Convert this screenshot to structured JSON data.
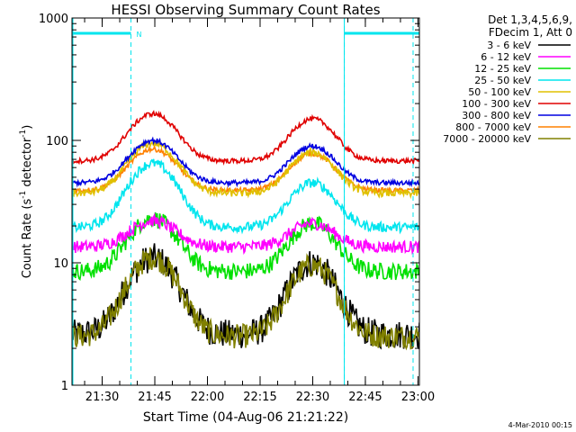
{
  "chart_data": {
    "type": "line",
    "title": "HESSI Observing Summary Count Rates",
    "xlabel": "Start Time (04-Aug-06 21:21:22)",
    "ylabel_main": "Count Rate (s",
    "ylabel_sup1": "-1",
    "ylabel_mid": " detector",
    "ylabel_sup2": "-1",
    "ylabel_end": ")",
    "y_scale": "log",
    "ylim": [
      1,
      1000
    ],
    "xlim_minutes": [
      0,
      99
    ],
    "x_tick_labels": [
      "21:30",
      "21:45",
      "22:00",
      "22:15",
      "22:30",
      "22:45",
      "23:00"
    ],
    "x_tick_minutes": [
      8.6,
      23.6,
      38.6,
      53.6,
      68.6,
      83.6,
      98.6
    ],
    "y_tick_labels": [
      "1",
      "10",
      "100",
      "1000"
    ],
    "y_tick_values": [
      1,
      10,
      100,
      1000
    ],
    "legend_header": [
      "Det 1,3,4,5,6,9,",
      "FDecim 1, Att 0"
    ],
    "legend_placement": "right",
    "night_flag": {
      "label": "N",
      "intervals_minutes": [
        [
          0,
          16.8
        ],
        [
          77.6,
          99
        ]
      ],
      "level": 750,
      "color": "#00e5ee"
    },
    "saa_lines_minutes": [
      16.8,
      77.6,
      97.2
    ],
    "series": [
      {
        "name": "3 - 6 keV",
        "color": "#000000",
        "base": 2.6,
        "peak1": 11,
        "peak2": 10,
        "noise": 0.12
      },
      {
        "name": "6 - 12 keV",
        "color": "#ff00ff",
        "base": 13.5,
        "peak1": 22,
        "peak2": 21,
        "noise": 0.05
      },
      {
        "name": "12 - 25 keV",
        "color": "#00e000",
        "base": 8.5,
        "peak1": 23,
        "peak2": 21,
        "noise": 0.07
      },
      {
        "name": "25 - 50 keV",
        "color": "#00e5ee",
        "base": 19.5,
        "peak1": 65,
        "peak2": 45,
        "noise": 0.04
      },
      {
        "name": "50 - 100 keV",
        "color": "#e0c000",
        "base": 37,
        "peak1": 95,
        "peak2": 80,
        "noise": 0.03
      },
      {
        "name": "100 - 300 keV",
        "color": "#e00000",
        "base": 68,
        "peak1": 165,
        "peak2": 150,
        "noise": 0.02
      },
      {
        "name": "300 - 800 keV",
        "color": "#0000e0",
        "base": 45,
        "peak1": 100,
        "peak2": 90,
        "noise": 0.02
      },
      {
        "name": "800 - 7000 keV",
        "color": "#ff8000",
        "base": 39,
        "peak1": 85,
        "peak2": 78,
        "noise": 0.02
      },
      {
        "name": "7000 - 20000 keV",
        "color": "#808000",
        "base": 2.5,
        "peak1": 11,
        "peak2": 9.5,
        "noise": 0.1
      }
    ]
  },
  "footer_date": "4-Mar-2010 00:15"
}
